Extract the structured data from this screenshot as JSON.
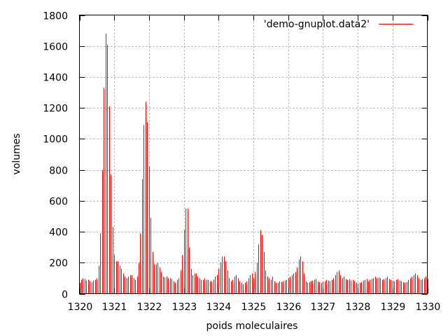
{
  "chart_data": {
    "type": "bar",
    "title": "",
    "xlabel": "poids moleculaires",
    "ylabel": "volumes",
    "xlim": [
      1320,
      1330
    ],
    "ylim": [
      0,
      1800
    ],
    "x_ticks": [
      "1320",
      "1321",
      "1322",
      "1323",
      "1324",
      "1325",
      "1326",
      "1327",
      "1328",
      "1329",
      "1330"
    ],
    "y_ticks": [
      "0",
      "200",
      "400",
      "600",
      "800",
      "1000",
      "1200",
      "1400",
      "1600",
      "1800"
    ],
    "grid": true,
    "legend_position": "top-right",
    "color": "#ff0000",
    "series": [
      {
        "name": "'demo-gnuplot.data2'",
        "x_start": 1320.0,
        "x_step": 0.05,
        "values": [
          70,
          90,
          100,
          95,
          85,
          90,
          80,
          75,
          85,
          90,
          100,
          180,
          390,
          800,
          1330,
          1680,
          1610,
          1210,
          770,
          430,
          250,
          210,
          210,
          180,
          160,
          130,
          110,
          100,
          110,
          120,
          120,
          100,
          90,
          110,
          200,
          390,
          740,
          1090,
          1240,
          1110,
          820,
          490,
          270,
          190,
          190,
          200,
          170,
          140,
          110,
          105,
          110,
          100,
          100,
          95,
          80,
          70,
          90,
          100,
          150,
          250,
          410,
          550,
          550,
          300,
          160,
          120,
          130,
          130,
          110,
          100,
          90,
          90,
          100,
          90,
          90,
          80,
          80,
          90,
          110,
          120,
          160,
          200,
          240,
          240,
          210,
          150,
          100,
          80,
          90,
          110,
          120,
          100,
          80,
          70,
          60,
          70,
          80,
          100,
          120,
          130,
          100,
          140,
          200,
          320,
          410,
          380,
          270,
          150,
          110,
          100,
          90,
          110,
          80,
          70,
          70,
          80,
          75,
          80,
          85,
          90,
          100,
          110,
          120,
          130,
          140,
          170,
          220,
          240,
          210,
          130,
          80,
          70,
          75,
          80,
          85,
          90,
          95,
          80,
          75,
          70,
          75,
          80,
          90,
          85,
          80,
          90,
          100,
          120,
          140,
          150,
          120,
          100,
          110,
          95,
          90,
          95,
          85,
          90,
          80,
          70,
          65,
          70,
          75,
          85,
          90,
          95,
          80,
          90,
          95,
          100,
          110,
          100,
          105,
          100,
          90,
          95,
          100,
          110,
          95,
          90,
          85,
          80,
          90,
          95,
          85,
          80,
          75,
          70,
          75,
          90,
          100,
          110,
          120,
          130,
          120,
          100,
          90,
          95,
          100,
          110,
          95,
          85,
          80,
          75,
          80,
          85,
          90,
          80,
          75,
          70,
          95,
          100,
          110,
          115,
          110,
          90,
          80,
          70,
          65,
          70,
          80,
          90,
          100
        ]
      }
    ]
  }
}
